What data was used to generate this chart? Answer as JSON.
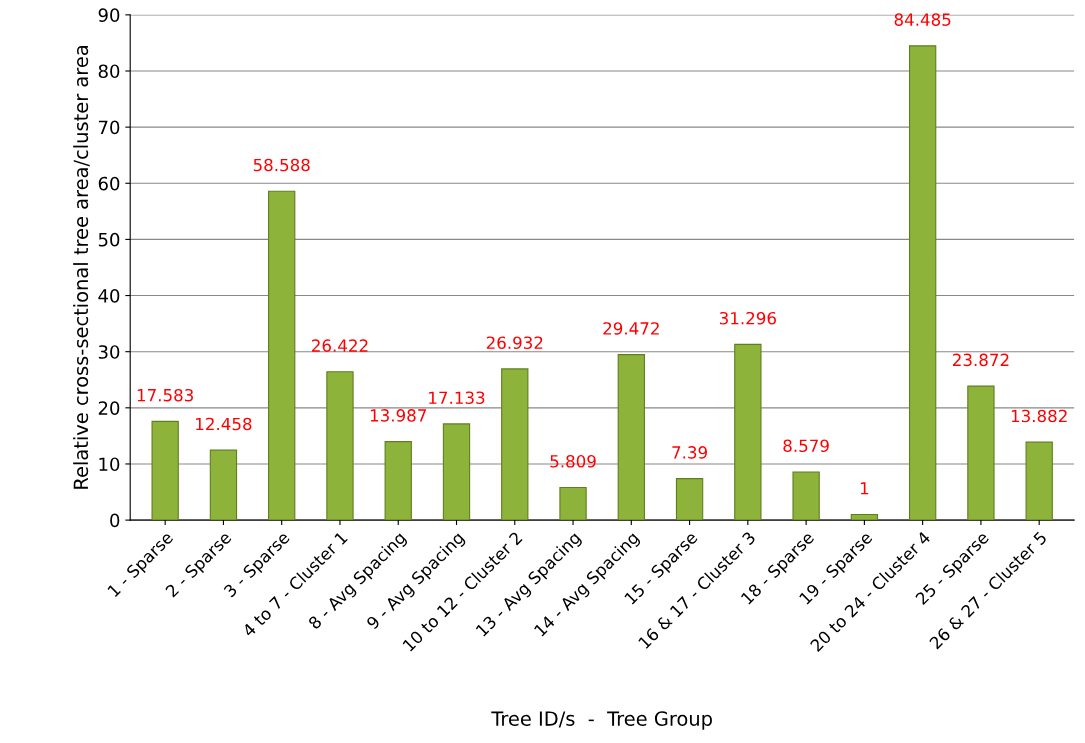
{
  "chart_data": {
    "type": "bar",
    "xlabel": "Tree ID/s  -  Tree Group",
    "ylabel": "Relative cross-sectional tree area/cluster area",
    "categories": [
      "1 - Sparse",
      "2 - Sparse",
      "3 - Sparse",
      "4 to 7 - Cluster 1",
      "8 - Avg Spacing",
      "9 - Avg Spacing",
      "10 to 12 - Cluster 2",
      "13 - Avg Spacing",
      "14 - Avg Spacing",
      "15 - Sparse",
      "16 & 17 - Cluster 3",
      "18 - Sparse",
      "19 - Sparse",
      "20 to 24 - Cluster 4",
      "25 - Sparse",
      "26 & 27 - Cluster 5"
    ],
    "values": [
      17.583,
      12.458,
      58.588,
      26.422,
      13.987,
      17.133,
      26.932,
      5.809,
      29.472,
      7.39,
      31.296,
      8.579,
      1,
      84.485,
      23.872,
      13.882
    ],
    "color": "#8db33a",
    "ylim": [
      0,
      90
    ],
    "yticks": [
      0,
      10,
      20,
      30,
      40,
      50,
      60,
      70,
      80,
      90
    ],
    "grid": "y",
    "data_labels": true
  }
}
